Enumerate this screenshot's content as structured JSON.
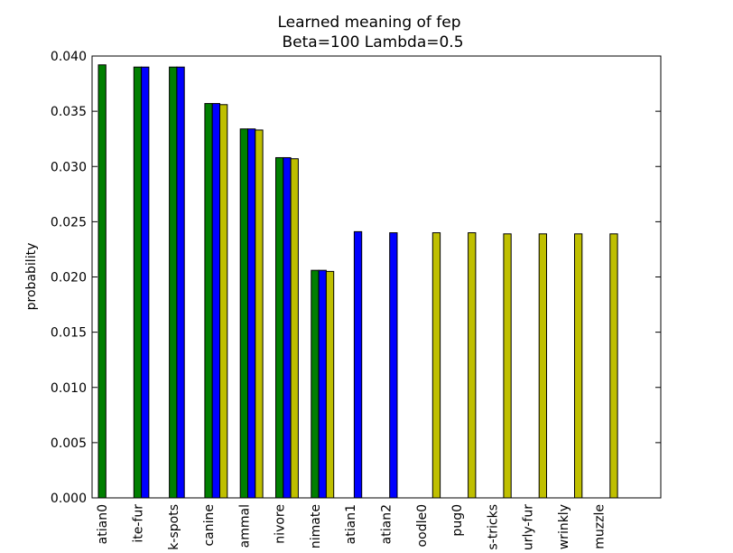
{
  "chart_data": {
    "type": "bar",
    "title": "Learned meaning of fep",
    "subtitle": "Beta=100 Lambda=0.5",
    "xlabel": "",
    "ylabel": "probability",
    "ylim": [
      0,
      0.04
    ],
    "yticks": [
      "0.000",
      "0.005",
      "0.010",
      "0.015",
      "0.020",
      "0.025",
      "0.030",
      "0.035",
      "0.040"
    ],
    "grid": false,
    "legend": "none",
    "categories": [
      "atian0",
      "ite-fur",
      "k-spots",
      "canine",
      "ammal",
      "nivore",
      "nimate",
      "atian1",
      "atian2",
      "oodle0",
      "pug0",
      "s-tricks",
      "urly-fur",
      "wrinkly",
      "muzzle"
    ],
    "series": [
      {
        "color": "#007f00",
        "values": [
          0.0392,
          0.039,
          0.039,
          0.0357,
          0.0334,
          0.0308,
          0.0206,
          0,
          0,
          0,
          0,
          0,
          0,
          0,
          0
        ]
      },
      {
        "color": "#0000ff",
        "values": [
          0,
          0.039,
          0.039,
          0.0357,
          0.0334,
          0.0308,
          0.0206,
          0.0241,
          0.024,
          0,
          0,
          0,
          0,
          0,
          0
        ]
      },
      {
        "color": "#bfbf00",
        "values": [
          0,
          0,
          0,
          0.0356,
          0.0333,
          0.0307,
          0.0205,
          0,
          0,
          0.024,
          0.024,
          0.0239,
          0.0239,
          0.0239,
          0.0239
        ]
      }
    ]
  }
}
